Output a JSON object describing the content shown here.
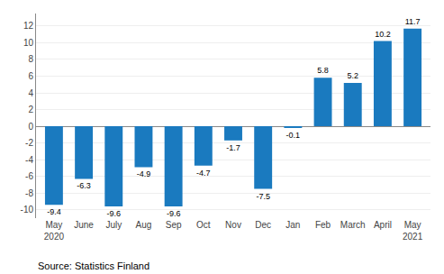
{
  "chart_data": {
    "type": "bar",
    "categories": [
      "May\n2020",
      "June",
      "July",
      "Aug",
      "Sep",
      "Oct",
      "Nov",
      "Dec",
      "Jan",
      "Feb",
      "March",
      "April",
      "May\n2021"
    ],
    "values": [
      -9.4,
      -6.3,
      -9.6,
      -4.9,
      -9.6,
      -4.7,
      -1.7,
      -7.5,
      -0.1,
      5.8,
      5.2,
      10.2,
      11.7
    ],
    "color": "#1a7abf",
    "ylim": [
      -11,
      13.5
    ],
    "yticks": [
      -10,
      -8,
      -6,
      -4,
      -2,
      0,
      2,
      4,
      6,
      8,
      10,
      12
    ],
    "grid": true,
    "data_labels": true,
    "annotations": [
      "Source: Statistics Finland"
    ]
  }
}
